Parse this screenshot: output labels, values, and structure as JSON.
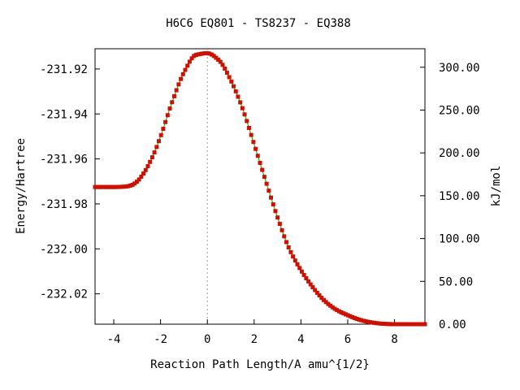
{
  "chart_data": {
    "type": "line",
    "title": "H6C6   EQ801 - TS8237 - EQ388",
    "xlabel": "Reaction Path Length/A amu^{1/2}",
    "ylabel": "Energy/Hartree",
    "y2label": "kJ/mol",
    "xlim": [
      -4.8,
      9.3
    ],
    "ylim": [
      -232.0335,
      -231.911
    ],
    "y2lim": [
      0.0,
      321.6
    ],
    "x_ticks": [
      -4,
      -2,
      0,
      2,
      4,
      6,
      8
    ],
    "x_tick_labels": [
      "-4",
      "-2",
      "0",
      "2",
      "4",
      "6",
      "8"
    ],
    "y_ticks": [
      -231.92,
      -231.94,
      -231.96,
      -231.98,
      -232.0,
      -232.02
    ],
    "y_tick_labels": [
      "-231.92",
      "-231.94",
      "-231.96",
      "-231.98",
      "-232.00",
      "-232.02"
    ],
    "y2_ticks": [
      300,
      250,
      200,
      150,
      100,
      50,
      0
    ],
    "y2_tick_labels": [
      "300.00",
      "250.00",
      "200.00",
      "150.00",
      "100.00",
      "50.00",
      "0.00"
    ],
    "ts_line_x": 0,
    "grid": false,
    "series": [
      {
        "line_color": "#00aa00",
        "marker_color": "#cc1100",
        "x": [
          -4.8,
          -4.0,
          -3.5,
          -3.2,
          -3.0,
          -2.7,
          -2.3,
          -2.0,
          -1.5,
          -1.0,
          -0.5,
          0.0,
          0.5,
          1.0,
          1.5,
          2.0,
          2.5,
          3.0,
          3.5,
          4.0,
          4.5,
          5.0,
          5.5,
          6.0,
          6.5,
          7.0,
          7.5,
          8.0,
          9.3
        ],
        "energy": [
          -231.9725,
          -231.9725,
          -231.9723,
          -231.9715,
          -231.97,
          -231.966,
          -231.958,
          -231.95,
          -231.9345,
          -231.9215,
          -231.9138,
          -231.913,
          -231.9162,
          -231.925,
          -231.9375,
          -231.9535,
          -231.97,
          -231.986,
          -232.0,
          -232.0095,
          -232.017,
          -232.023,
          -232.027,
          -232.0295,
          -232.0315,
          -232.0327,
          -232.0333,
          -232.0335,
          -232.0335
        ]
      }
    ]
  }
}
